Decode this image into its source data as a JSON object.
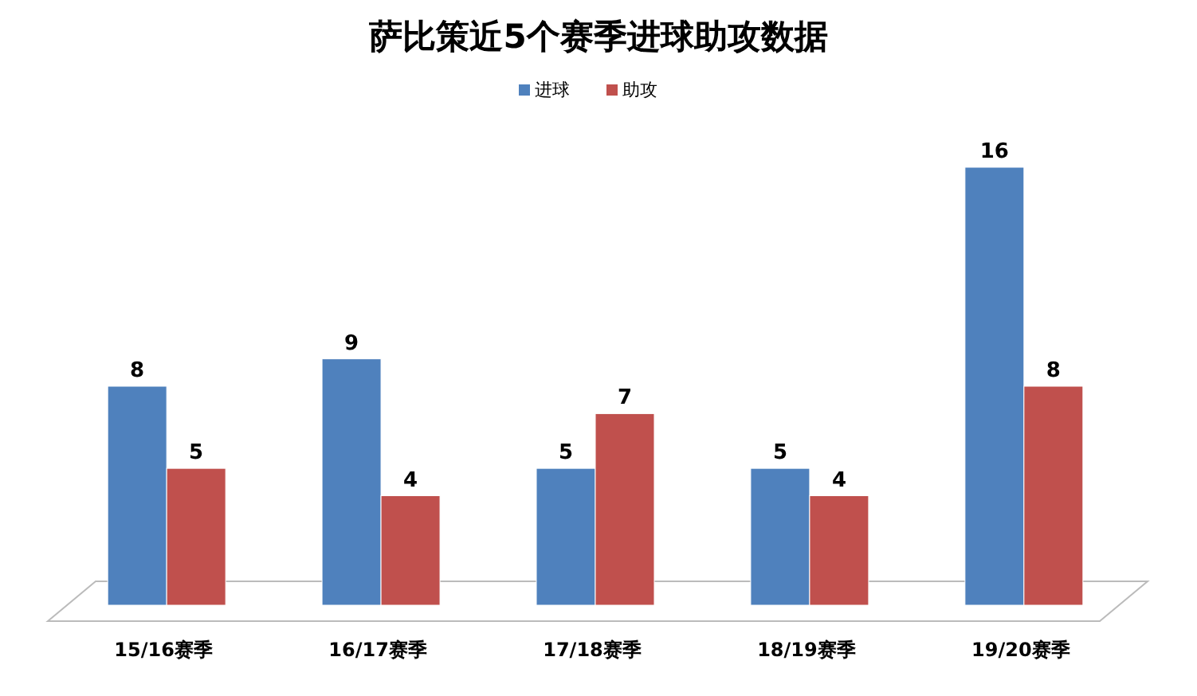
{
  "chart_data": {
    "type": "bar",
    "title": "萨比策近5个赛季进球助攻数据",
    "categories": [
      "15/16赛季",
      "16/17赛季",
      "17/18赛季",
      "18/19赛季",
      "19/20赛季"
    ],
    "series": [
      {
        "name": "进球",
        "color": "#4f81bd",
        "values": [
          8,
          9,
          5,
          5,
          16
        ]
      },
      {
        "name": "助攻",
        "color": "#c0504d",
        "values": [
          5,
          4,
          7,
          4,
          8
        ]
      }
    ],
    "data_labels": true,
    "legend": "top"
  }
}
